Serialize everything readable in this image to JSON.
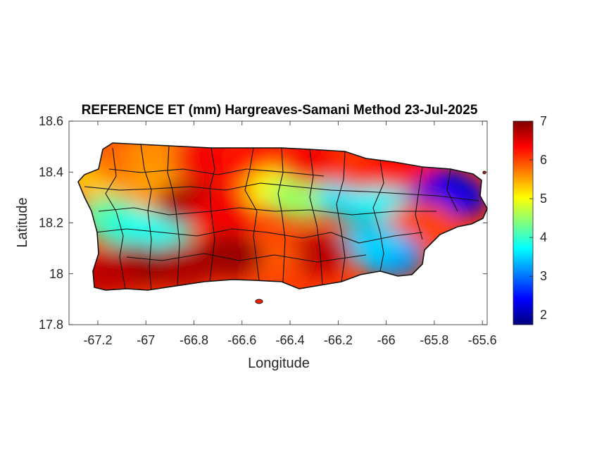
{
  "chart_data": {
    "type": "heatmap",
    "title": "REFERENCE ET (mm) Hargreaves-Samani Method  23-Jul-2025",
    "xlabel": "Longitude",
    "ylabel": "Latitude",
    "xlim": [
      -67.32,
      -65.58
    ],
    "ylim": [
      17.8,
      18.6
    ],
    "x_ticks": [
      {
        "value": -67.2,
        "label": "-67.2"
      },
      {
        "value": -67.0,
        "label": "-67"
      },
      {
        "value": -66.8,
        "label": "-66.8"
      },
      {
        "value": -66.6,
        "label": "-66.6"
      },
      {
        "value": -66.4,
        "label": "-66.4"
      },
      {
        "value": -66.2,
        "label": "-66.2"
      },
      {
        "value": -66.0,
        "label": "-66"
      },
      {
        "value": -65.8,
        "label": "-65.8"
      },
      {
        "value": -65.6,
        "label": "-65.6"
      }
    ],
    "y_ticks": [
      {
        "value": 17.8,
        "label": "17.8"
      },
      {
        "value": 18.0,
        "label": "18"
      },
      {
        "value": 18.2,
        "label": "18.2"
      },
      {
        "value": 18.4,
        "label": "18.4"
      },
      {
        "value": 18.6,
        "label": "18.6"
      }
    ],
    "colorbar": {
      "colormap": "jet",
      "range": [
        1.75,
        7.0
      ],
      "ticks": [
        {
          "value": 2,
          "label": "2"
        },
        {
          "value": 3,
          "label": "3"
        },
        {
          "value": 4,
          "label": "4"
        },
        {
          "value": 5,
          "label": "5"
        },
        {
          "value": 6,
          "label": "6"
        },
        {
          "value": 7,
          "label": "7"
        }
      ]
    },
    "grid": false,
    "regions": [
      {
        "lon": -67.22,
        "lat": 18.38,
        "value": 5.3
      },
      {
        "lon": -67.15,
        "lat": 18.22,
        "value": 4.2
      },
      {
        "lon": -67.05,
        "lat": 18.18,
        "value": 3.9
      },
      {
        "lon": -66.95,
        "lat": 18.17,
        "value": 3.8
      },
      {
        "lon": -67.1,
        "lat": 18.45,
        "value": 5.8
      },
      {
        "lon": -66.95,
        "lat": 18.47,
        "value": 5.6
      },
      {
        "lon": -66.95,
        "lat": 18.33,
        "value": 5.5
      },
      {
        "lon": -66.82,
        "lat": 18.28,
        "value": 6.8
      },
      {
        "lon": -66.68,
        "lat": 18.24,
        "value": 6.4
      },
      {
        "lon": -66.75,
        "lat": 18.45,
        "value": 6.4
      },
      {
        "lon": -66.55,
        "lat": 18.45,
        "value": 6.3
      },
      {
        "lon": -66.45,
        "lat": 18.33,
        "value": 5.0
      },
      {
        "lon": -66.35,
        "lat": 18.3,
        "value": 4.5
      },
      {
        "lon": -66.15,
        "lat": 18.3,
        "value": 3.6
      },
      {
        "lon": -66.0,
        "lat": 18.3,
        "value": 3.7
      },
      {
        "lon": -65.78,
        "lat": 18.33,
        "value": 2.2
      },
      {
        "lon": -65.72,
        "lat": 18.3,
        "value": 2.3
      },
      {
        "lon": -65.85,
        "lat": 18.2,
        "value": 6.0
      },
      {
        "lon": -65.98,
        "lat": 18.07,
        "value": 3.2
      },
      {
        "lon": -66.07,
        "lat": 18.12,
        "value": 3.5
      },
      {
        "lon": -66.28,
        "lat": 18.08,
        "value": 6.7
      },
      {
        "lon": -66.5,
        "lat": 18.07,
        "value": 5.9
      },
      {
        "lon": -66.65,
        "lat": 18.07,
        "value": 6.9
      },
      {
        "lon": -66.85,
        "lat": 18.03,
        "value": 6.8
      },
      {
        "lon": -67.05,
        "lat": 18.03,
        "value": 6.9
      },
      {
        "lon": -67.18,
        "lat": 18.0,
        "value": 6.7
      },
      {
        "lon": -66.3,
        "lat": 18.44,
        "value": 6.4
      },
      {
        "lon": -66.1,
        "lat": 18.42,
        "value": 6.1
      },
      {
        "lon": -65.95,
        "lat": 18.42,
        "value": 6.3
      }
    ]
  }
}
